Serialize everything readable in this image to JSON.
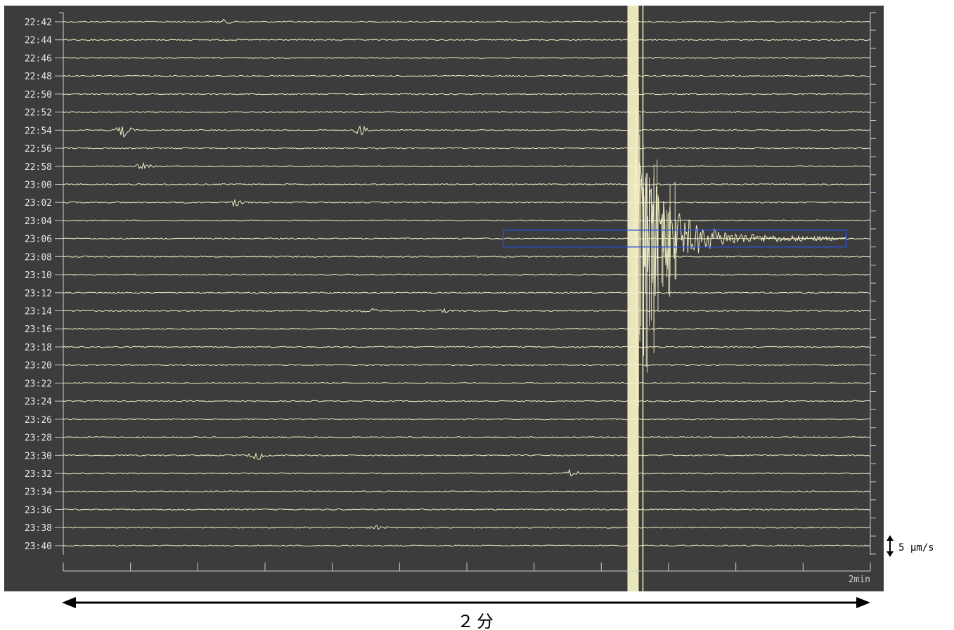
{
  "chart_data": {
    "type": "seismogram",
    "title": "",
    "time_labels": [
      "22:42",
      "22:44",
      "22:46",
      "22:48",
      "22:50",
      "22:52",
      "22:54",
      "22:56",
      "22:58",
      "23:00",
      "23:02",
      "23:04",
      "23:06",
      "23:08",
      "23:10",
      "23:12",
      "23:14",
      "23:16",
      "23:18",
      "23:20",
      "23:22",
      "23:24",
      "23:26",
      "23:28",
      "23:30",
      "23:32",
      "23:34",
      "23:36",
      "23:38",
      "23:40"
    ],
    "x_span_label": "2min",
    "x_tick_count": 12,
    "scale_label": "5 μm/s",
    "duration_label": "２分",
    "highlight_row": "23:06",
    "highlight_x_range": [
      0.545,
      0.97
    ],
    "earthquake": {
      "x": 0.706,
      "peak_row": "23:06"
    },
    "noise_bursts": [
      {
        "row": "22:42",
        "x": 0.2,
        "amp": 3
      },
      {
        "row": "22:54",
        "x": 0.075,
        "amp": 9
      },
      {
        "row": "22:54",
        "x": 0.37,
        "amp": 7
      },
      {
        "row": "22:58",
        "x": 0.1,
        "amp": 4
      },
      {
        "row": "23:02",
        "x": 0.215,
        "amp": 5
      },
      {
        "row": "23:14",
        "x": 0.38,
        "amp": 3
      },
      {
        "row": "23:14",
        "x": 0.475,
        "amp": 2
      },
      {
        "row": "23:30",
        "x": 0.24,
        "amp": 6
      },
      {
        "row": "23:32",
        "x": 0.63,
        "amp": 5
      },
      {
        "row": "23:38",
        "x": 0.39,
        "amp": 3
      }
    ],
    "colors": {
      "background": "#3c3c3c",
      "trace": "#f2efc4",
      "axis": "#cfcfcf",
      "highlight": "#2a52d6"
    }
  }
}
